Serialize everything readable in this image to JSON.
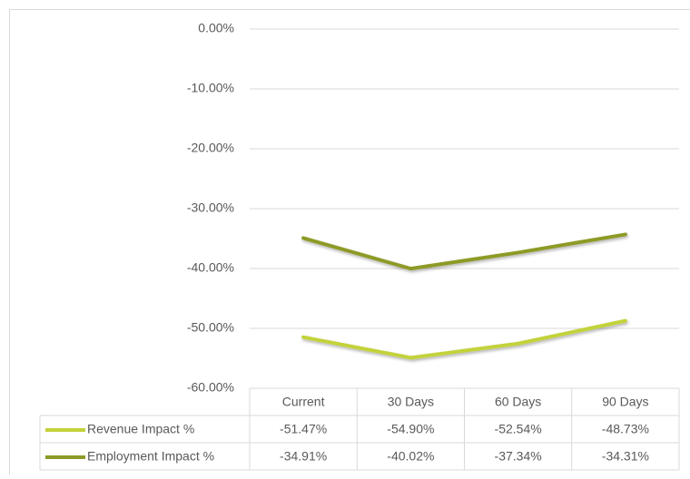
{
  "chart_data": {
    "type": "line",
    "categories": [
      "Current",
      "30 Days",
      "60 Days",
      "90 Days"
    ],
    "series": [
      {
        "name": "Revenue Impact %",
        "color": "#c2d23b",
        "values": [
          -51.47,
          -54.9,
          -52.54,
          -48.73
        ],
        "value_labels": [
          "-51.47%",
          "-54.90%",
          "-52.54%",
          "-48.73%"
        ]
      },
      {
        "name": "Employment Impact %",
        "color": "#8e9a26",
        "values": [
          -34.91,
          -40.02,
          -37.34,
          -34.31
        ],
        "value_labels": [
          "-34.91%",
          "-40.02%",
          "-37.34%",
          "-34.31%"
        ]
      }
    ],
    "ylim": [
      -60,
      0
    ],
    "yticks": [
      {
        "value": 0,
        "label": "0.00%"
      },
      {
        "value": -10,
        "label": "-10.00%"
      },
      {
        "value": -20,
        "label": "-20.00%"
      },
      {
        "value": -30,
        "label": "-30.00%"
      },
      {
        "value": -40,
        "label": "-40.00%"
      },
      {
        "value": -50,
        "label": "-50.00%"
      },
      {
        "value": -60,
        "label": "-60.00%"
      }
    ],
    "grid": true,
    "data_table": true
  }
}
